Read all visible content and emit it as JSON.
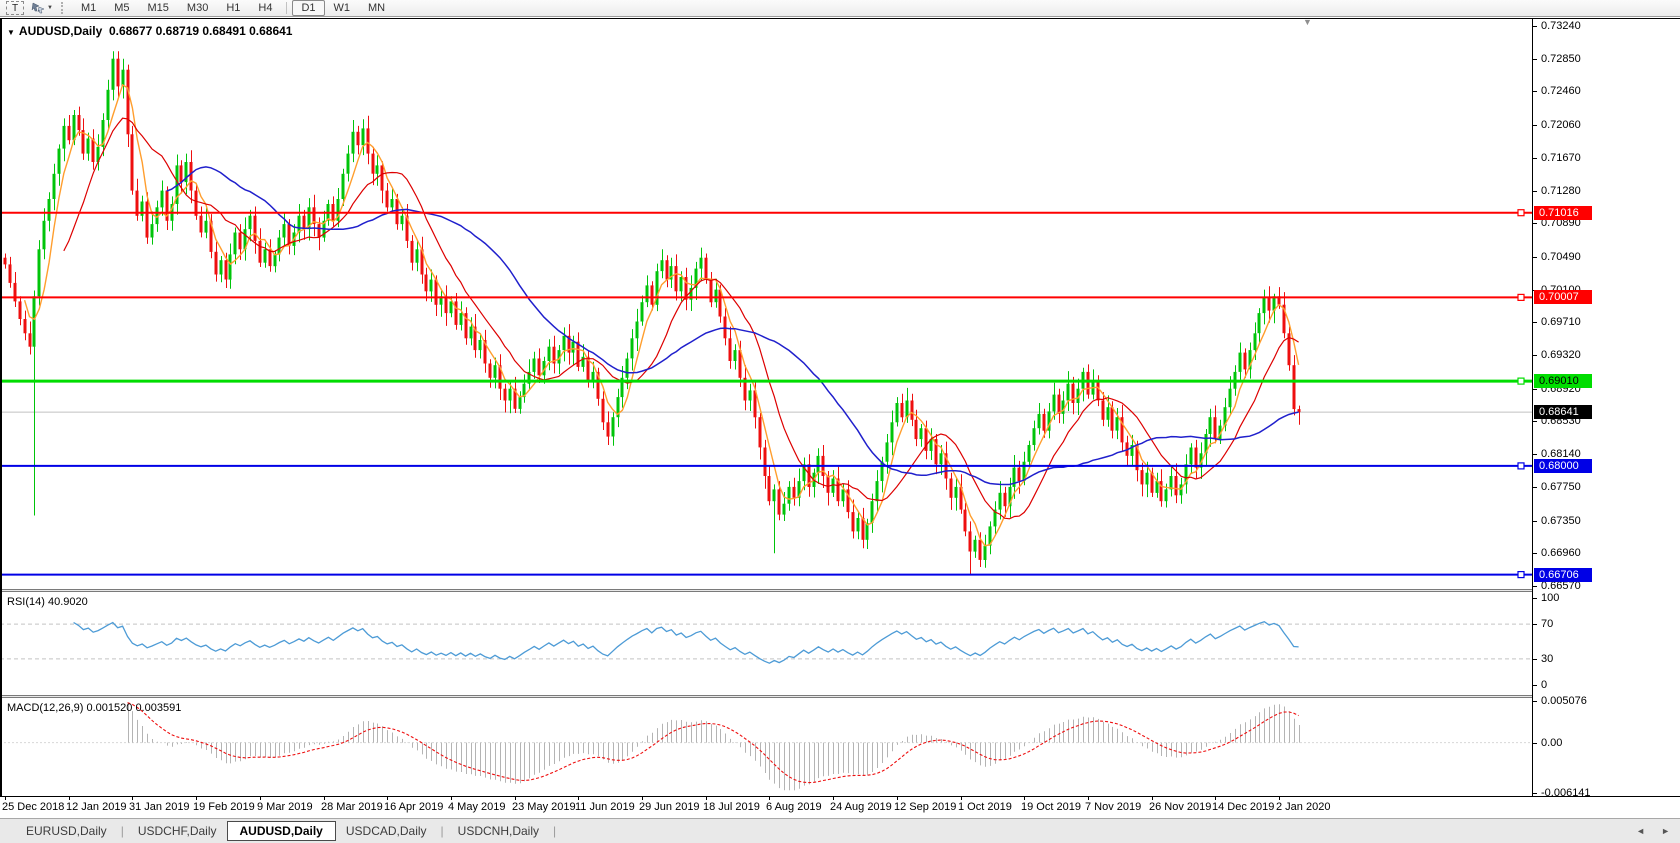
{
  "toolbar": {
    "text_tool": "T",
    "timeframes": [
      "M1",
      "M5",
      "M15",
      "M30",
      "H1",
      "H4",
      "D1",
      "W1",
      "MN"
    ],
    "active_timeframe": "D1"
  },
  "icons": {
    "collapse": "▼",
    "caret": "▼",
    "shift_marker": "▼",
    "tab_left": "◄",
    "tab_right": "►"
  },
  "header": {
    "symbol": "AUDUSD,Daily",
    "ohlc_text": "0.68677 0.68719 0.68491 0.68641"
  },
  "chart_data": {
    "type": "candlestick",
    "title": "AUDUSD,Daily",
    "ohlc_label_values": [
      0.68677,
      0.68719,
      0.68491,
      0.68641
    ],
    "x_tick_labels": [
      "25 Dec 2018",
      "12 Jan 2019",
      "31 Jan 2019",
      "19 Feb 2019",
      "9 Mar 2019",
      "28 Mar 2019",
      "16 Apr 2019",
      "4 May 2019",
      "23 May 2019",
      "11 Jun 2019",
      "29 Jun 2019",
      "18 Jul 2019",
      "6 Aug 2019",
      "24 Aug 2019",
      "12 Sep 2019",
      "1 Oct 2019",
      "19 Oct 2019",
      "7 Nov 2019",
      "26 Nov 2019",
      "14 Dec 2019",
      "2 Jan 2020"
    ],
    "y_tick_labels": [
      "0.73240",
      "0.72850",
      "0.72460",
      "0.72060",
      "0.71670",
      "0.71280",
      "0.70890",
      "0.70490",
      "0.70100",
      "0.69710",
      "0.69320",
      "0.68920",
      "0.68530",
      "0.68140",
      "0.67750",
      "0.67350",
      "0.66960",
      "0.66570"
    ],
    "y_top": 0.7324,
    "y_bottom": 0.6657,
    "open_first": 0.7048,
    "closes": [
      0.704,
      0.7018,
      0.6996,
      0.6975,
      0.6958,
      0.6942,
      0.7002,
      0.7058,
      0.7092,
      0.7118,
      0.7148,
      0.7178,
      0.7205,
      0.7188,
      0.7218,
      0.72,
      0.7172,
      0.719,
      0.7162,
      0.718,
      0.7212,
      0.7248,
      0.7285,
      0.7252,
      0.7272,
      0.7195,
      0.7128,
      0.7098,
      0.7115,
      0.7072,
      0.7088,
      0.7108,
      0.7128,
      0.7092,
      0.7112,
      0.7158,
      0.7138,
      0.7162,
      0.7128,
      0.7098,
      0.7078,
      0.7092,
      0.7055,
      0.7028,
      0.7045,
      0.7022,
      0.7052,
      0.7078,
      0.7058,
      0.7082,
      0.7098,
      0.7068,
      0.7042,
      0.7058,
      0.7038,
      0.7052,
      0.7072,
      0.7088,
      0.7062,
      0.7078,
      0.7098,
      0.7082,
      0.7108,
      0.7088,
      0.7072,
      0.7092,
      0.7112,
      0.7092,
      0.7118,
      0.7148,
      0.7172,
      0.7198,
      0.7182,
      0.7202,
      0.7172,
      0.7148,
      0.7158,
      0.7128,
      0.7108,
      0.7118,
      0.7088,
      0.7098,
      0.7068,
      0.7042,
      0.7058,
      0.7028,
      0.7008,
      0.7022,
      0.6992,
      0.7002,
      0.6982,
      0.6996,
      0.6968,
      0.6982,
      0.6952,
      0.6966,
      0.6938,
      0.695,
      0.6922,
      0.6905,
      0.692,
      0.6892,
      0.6878,
      0.6892,
      0.6868,
      0.6882,
      0.6898,
      0.6912,
      0.6928,
      0.6908,
      0.6925,
      0.6942,
      0.6922,
      0.6938,
      0.6955,
      0.6935,
      0.6948,
      0.6918,
      0.693,
      0.69,
      0.6912,
      0.688,
      0.6852,
      0.6835,
      0.6858,
      0.6882,
      0.6905,
      0.6928,
      0.6952,
      0.6972,
      0.6995,
      0.7015,
      0.6992,
      0.7032,
      0.7045,
      0.7022,
      0.7038,
      0.7008,
      0.7025,
      0.6998,
      0.7012,
      0.7035,
      0.7048,
      0.7022,
      0.6995,
      0.701,
      0.6978,
      0.6952,
      0.6925,
      0.6938,
      0.6905,
      0.6878,
      0.689,
      0.6858,
      0.6822,
      0.6788,
      0.6758,
      0.6772,
      0.6742,
      0.6755,
      0.6775,
      0.6762,
      0.6782,
      0.6802,
      0.6775,
      0.6792,
      0.6812,
      0.6788,
      0.6768,
      0.6785,
      0.6758,
      0.6772,
      0.6745,
      0.6722,
      0.6738,
      0.6712,
      0.6732,
      0.6758,
      0.6782,
      0.6805,
      0.6828,
      0.6852,
      0.6875,
      0.6858,
      0.6878,
      0.6855,
      0.6832,
      0.6845,
      0.6818,
      0.6832,
      0.6802,
      0.6815,
      0.6785,
      0.6762,
      0.6775,
      0.6748,
      0.6722,
      0.6698,
      0.6712,
      0.6688,
      0.6705,
      0.6728,
      0.6748,
      0.6768,
      0.6752,
      0.6775,
      0.6798,
      0.6782,
      0.6805,
      0.6825,
      0.6845,
      0.6862,
      0.6842,
      0.6865,
      0.6885,
      0.6862,
      0.6878,
      0.6898,
      0.6875,
      0.6892,
      0.6912,
      0.6885,
      0.6902,
      0.6878,
      0.6855,
      0.687,
      0.6842,
      0.6858,
      0.6828,
      0.6812,
      0.6825,
      0.6795,
      0.6778,
      0.6792,
      0.6768,
      0.6782,
      0.6758,
      0.6772,
      0.6788,
      0.6765,
      0.6778,
      0.6802,
      0.6822,
      0.6798,
      0.6815,
      0.6838,
      0.6858,
      0.6832,
      0.6848,
      0.687,
      0.6892,
      0.6912,
      0.6935,
      0.6915,
      0.6938,
      0.6958,
      0.6982,
      0.7,
      0.6985,
      0.7002,
      0.6992,
      0.6958,
      0.692,
      0.68677,
      0.68641
    ],
    "special_lows": {
      "6": 0.6741,
      "157": 0.6696,
      "197": 0.6671,
      "264": 0.68491
    },
    "special_highs": {
      "22": 0.7294,
      "259": 0.7005,
      "264": 0.68719
    },
    "horizontal_lines": [
      {
        "label": "0.71016",
        "price": 0.71016,
        "color": "#ff0000",
        "width": 2,
        "tag_text_color": "#ffffff"
      },
      {
        "label": "0.70007",
        "price": 0.70007,
        "color": "#ff0000",
        "width": 2,
        "tag_text_color": "#ffffff"
      },
      {
        "label": "0.69010",
        "price": 0.6901,
        "color": "#00dd00",
        "width": 3,
        "tag_text_color": "#000000"
      },
      {
        "label": "0.68000",
        "price": 0.68,
        "color": "#0000e6",
        "width": 2,
        "tag_text_color": "#ffffff"
      },
      {
        "label": "0.66706",
        "price": 0.66706,
        "color": "#0000e6",
        "width": 2,
        "tag_text_color": "#ffffff"
      }
    ],
    "current_price": {
      "label": "0.68641",
      "price": 0.68641,
      "line_color": "#c0c0c0",
      "tag_bg": "#000000",
      "tag_text_color": "#ffffff"
    },
    "moving_averages": [
      {
        "period": 5,
        "color": "#ff9e2e",
        "width": 1.4
      },
      {
        "period": 13,
        "color": "#dd0000",
        "width": 1.2
      },
      {
        "period": 34,
        "color": "#2020cc",
        "width": 1.5
      }
    ],
    "candle_up_color": "#00c40a",
    "candle_down_color": "#ee0f0f",
    "rsi_panel": {
      "label": "RSI(14)",
      "value": "40.9020",
      "period": 14,
      "color": "#4d9bd6",
      "ticks": [
        {
          "label": "100",
          "v": 100
        },
        {
          "label": "70",
          "v": 70
        },
        {
          "label": "30",
          "v": 30
        },
        {
          "label": "0",
          "v": 0
        }
      ],
      "dashed_levels": [
        70,
        30
      ]
    },
    "macd_panel": {
      "label": "MACD(12,26,9)",
      "main_value": "0.001520",
      "signal_value": "0.003591",
      "fast": 12,
      "slow": 26,
      "signal": 9,
      "hist_color": "#b4b4b4",
      "signal_color": "#ee0f0f",
      "v_top": 0.005076,
      "v_bottom": -0.006141,
      "ticks": [
        {
          "label": "0.005076",
          "v": 0.005076
        },
        {
          "label": "0.00",
          "v": 0
        },
        {
          "label": "-0.006141",
          "v": -0.006141
        }
      ]
    }
  },
  "tabs": {
    "items": [
      {
        "label": "EURUSD,Daily",
        "active": false
      },
      {
        "label": "USDCHF,Daily",
        "active": false
      },
      {
        "label": "AUDUSD,Daily",
        "active": true
      },
      {
        "label": "USDCAD,Daily",
        "active": false
      },
      {
        "label": "USDCNH,Daily",
        "active": false
      }
    ]
  }
}
